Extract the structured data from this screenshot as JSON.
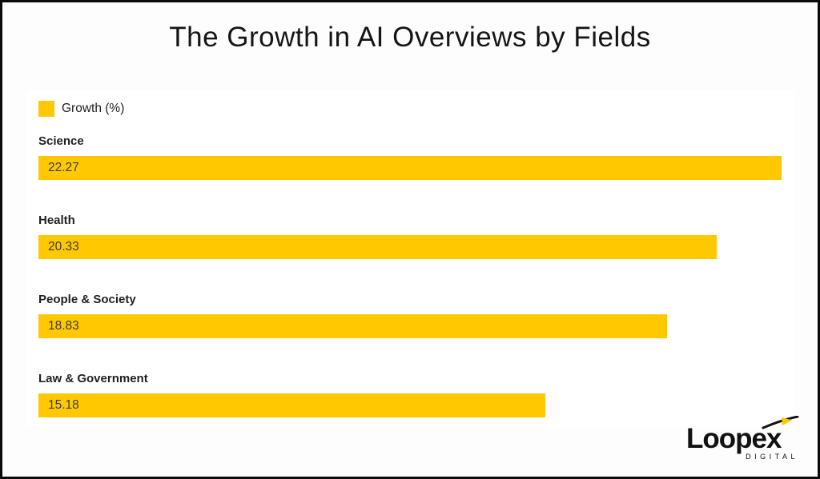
{
  "page": {
    "background": "#fdfdfd",
    "frame_color": "#0b0b0b",
    "card_background": "#ffffff"
  },
  "title": "The Growth in AI Overviews by Fields",
  "chart_data": {
    "type": "bar",
    "orientation": "horizontal",
    "title": "The Growth in AI Overviews by Fields",
    "legend": {
      "label": "Growth (%)",
      "position": "top-left",
      "swatch_color": "#FFC800"
    },
    "categories": [
      "Science",
      "Health",
      "People & Society",
      "Law & Government"
    ],
    "values": [
      22.27,
      20.33,
      18.83,
      15.18
    ],
    "value_labels": [
      "22.27",
      "20.33",
      "18.83",
      "15.18"
    ],
    "xlim": [
      0,
      22.27
    ],
    "bar_color": "#FFC800",
    "grid": false,
    "value_label_position": "inside-start",
    "category_label_position": "above-bar"
  },
  "logo": {
    "brand": "Loopex",
    "tagline": "DIGITAL",
    "text_color": "#111111",
    "accent_color": "#FFC800"
  }
}
